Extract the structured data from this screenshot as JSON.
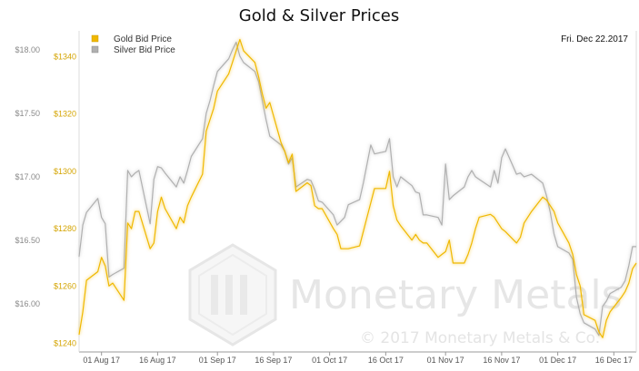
{
  "chart_data": {
    "type": "line",
    "title": "Gold & Silver Prices",
    "date_label": "Fri. Dec 22.2017",
    "legend_position": "top-left",
    "grid": false,
    "x_tick_labels": [
      "01 Aug 17",
      "16 Aug 17",
      "01 Sep 17",
      "16 Sep 17",
      "01 Oct 17",
      "16 Oct 17",
      "01 Nov 17",
      "16 Nov 17",
      "01 Dec 17",
      "16 Dec 17"
    ],
    "x_range": [
      "2017-07-26",
      "2017-12-22"
    ],
    "gold_axis": {
      "ylim": [
        1237,
        1349
      ],
      "ticks": [
        1240,
        1260,
        1280,
        1300,
        1320,
        1340
      ],
      "tick_labels": [
        "$1240",
        "$1260",
        "$1280",
        "$1300",
        "$1320",
        "$1340"
      ]
    },
    "silver_axis": {
      "ylim": [
        15.62,
        18.15
      ],
      "ticks": [
        16.0,
        16.5,
        17.0,
        17.5,
        18.0
      ],
      "tick_labels": [
        "$16.00",
        "$16.50",
        "$17.00",
        "$17.50",
        "$18.00"
      ]
    },
    "series": [
      {
        "name": "Gold Bid Price",
        "color": "#f0b800",
        "axis": "gold",
        "x": [
          "2017-07-26",
          "2017-07-27",
          "2017-07-28",
          "2017-07-31",
          "2017-08-01",
          "2017-08-02",
          "2017-08-03",
          "2017-08-04",
          "2017-08-07",
          "2017-08-08",
          "2017-08-09",
          "2017-08-10",
          "2017-08-11",
          "2017-08-14",
          "2017-08-15",
          "2017-08-16",
          "2017-08-17",
          "2017-08-18",
          "2017-08-21",
          "2017-08-22",
          "2017-08-23",
          "2017-08-24",
          "2017-08-25",
          "2017-08-28",
          "2017-08-29",
          "2017-08-30",
          "2017-08-31",
          "2017-09-01",
          "2017-09-04",
          "2017-09-05",
          "2017-09-06",
          "2017-09-07",
          "2017-09-08",
          "2017-09-11",
          "2017-09-12",
          "2017-09-13",
          "2017-09-14",
          "2017-09-15",
          "2017-09-18",
          "2017-09-19",
          "2017-09-20",
          "2017-09-21",
          "2017-09-22",
          "2017-09-25",
          "2017-09-26",
          "2017-09-27",
          "2017-09-28",
          "2017-09-29",
          "2017-10-02",
          "2017-10-03",
          "2017-10-04",
          "2017-10-05",
          "2017-10-06",
          "2017-10-09",
          "2017-10-10",
          "2017-10-11",
          "2017-10-12",
          "2017-10-13",
          "2017-10-16",
          "2017-10-17",
          "2017-10-18",
          "2017-10-19",
          "2017-10-20",
          "2017-10-23",
          "2017-10-24",
          "2017-10-25",
          "2017-10-26",
          "2017-10-27",
          "2017-10-30",
          "2017-10-31",
          "2017-11-01",
          "2017-11-02",
          "2017-11-03",
          "2017-11-06",
          "2017-11-07",
          "2017-11-08",
          "2017-11-09",
          "2017-11-10",
          "2017-11-13",
          "2017-11-14",
          "2017-11-15",
          "2017-11-16",
          "2017-11-17",
          "2017-11-20",
          "2017-11-21",
          "2017-11-22",
          "2017-11-24",
          "2017-11-27",
          "2017-11-28",
          "2017-11-29",
          "2017-11-30",
          "2017-12-01",
          "2017-12-04",
          "2017-12-05",
          "2017-12-06",
          "2017-12-07",
          "2017-12-08",
          "2017-12-11",
          "2017-12-12",
          "2017-12-13",
          "2017-12-14",
          "2017-12-15",
          "2017-12-18",
          "2017-12-19",
          "2017-12-20",
          "2017-12-21",
          "2017-12-22"
        ],
        "values": [
          1243,
          1251,
          1262,
          1265,
          1270,
          1267,
          1260,
          1261,
          1255,
          1282,
          1280,
          1286,
          1286,
          1273,
          1275,
          1286,
          1291,
          1287,
          1280,
          1284,
          1282,
          1288,
          1291,
          1299,
          1314,
          1318,
          1322,
          1328,
          1334,
          1338,
          1342,
          1346,
          1342,
          1338,
          1333,
          1327,
          1322,
          1324,
          1310,
          1307,
          1303,
          1306,
          1293,
          1296,
          1295,
          1288,
          1287,
          1287,
          1280,
          1278,
          1273,
          1273,
          1273,
          1274,
          1279,
          1284,
          1289,
          1294,
          1294,
          1300,
          1288,
          1283,
          1281,
          1276,
          1278,
          1276,
          1275,
          1275,
          1270,
          1271,
          1272,
          1276,
          1268,
          1268,
          1271,
          1275,
          1280,
          1284,
          1285,
          1284,
          1282,
          1280,
          1279,
          1275,
          1277,
          1282,
          1286,
          1291,
          1290,
          1288,
          1286,
          1282,
          1275,
          1271,
          1264,
          1260,
          1250,
          1248,
          1244,
          1242,
          1248,
          1251,
          1256,
          1258,
          1261,
          1266,
          1268
        ]
      },
      {
        "name": "Silver Bid Price",
        "color": "#b0b0b0",
        "axis": "silver",
        "x": [
          "2017-07-26",
          "2017-07-27",
          "2017-07-28",
          "2017-07-31",
          "2017-08-01",
          "2017-08-02",
          "2017-08-03",
          "2017-08-04",
          "2017-08-07",
          "2017-08-08",
          "2017-08-09",
          "2017-08-10",
          "2017-08-11",
          "2017-08-14",
          "2017-08-15",
          "2017-08-16",
          "2017-08-17",
          "2017-08-18",
          "2017-08-21",
          "2017-08-22",
          "2017-08-23",
          "2017-08-24",
          "2017-08-25",
          "2017-08-28",
          "2017-08-29",
          "2017-08-30",
          "2017-08-31",
          "2017-09-01",
          "2017-09-04",
          "2017-09-05",
          "2017-09-06",
          "2017-09-07",
          "2017-09-08",
          "2017-09-11",
          "2017-09-12",
          "2017-09-13",
          "2017-09-14",
          "2017-09-15",
          "2017-09-18",
          "2017-09-19",
          "2017-09-20",
          "2017-09-21",
          "2017-09-22",
          "2017-09-25",
          "2017-09-26",
          "2017-09-27",
          "2017-09-28",
          "2017-09-29",
          "2017-10-02",
          "2017-10-03",
          "2017-10-04",
          "2017-10-05",
          "2017-10-06",
          "2017-10-09",
          "2017-10-10",
          "2017-10-11",
          "2017-10-12",
          "2017-10-13",
          "2017-10-16",
          "2017-10-17",
          "2017-10-18",
          "2017-10-19",
          "2017-10-20",
          "2017-10-23",
          "2017-10-24",
          "2017-10-25",
          "2017-10-26",
          "2017-10-27",
          "2017-10-30",
          "2017-10-31",
          "2017-11-01",
          "2017-11-02",
          "2017-11-03",
          "2017-11-06",
          "2017-11-07",
          "2017-11-08",
          "2017-11-09",
          "2017-11-10",
          "2017-11-13",
          "2017-11-14",
          "2017-11-15",
          "2017-11-16",
          "2017-11-17",
          "2017-11-20",
          "2017-11-21",
          "2017-11-22",
          "2017-11-24",
          "2017-11-27",
          "2017-11-28",
          "2017-11-29",
          "2017-11-30",
          "2017-12-01",
          "2017-12-04",
          "2017-12-05",
          "2017-12-06",
          "2017-12-07",
          "2017-12-08",
          "2017-12-11",
          "2017-12-12",
          "2017-12-13",
          "2017-12-14",
          "2017-12-15",
          "2017-12-18",
          "2017-12-19",
          "2017-12-20",
          "2017-12-21",
          "2017-12-22"
        ],
        "values": [
          16.37,
          16.62,
          16.72,
          16.83,
          16.68,
          16.63,
          16.21,
          16.23,
          16.28,
          17.05,
          17.0,
          17.03,
          17.05,
          16.63,
          16.98,
          17.08,
          17.07,
          17.03,
          16.92,
          17.0,
          16.95,
          17.05,
          17.16,
          17.3,
          17.5,
          17.6,
          17.72,
          17.83,
          17.93,
          18.0,
          18.06,
          17.95,
          17.9,
          17.83,
          17.75,
          17.6,
          17.45,
          17.32,
          17.25,
          17.2,
          17.1,
          17.15,
          16.92,
          16.98,
          16.97,
          16.9,
          16.81,
          16.8,
          16.7,
          16.62,
          16.65,
          16.68,
          16.78,
          16.82,
          16.95,
          17.1,
          17.25,
          17.18,
          17.2,
          17.3,
          17.0,
          16.92,
          17.0,
          16.93,
          16.88,
          16.87,
          16.7,
          16.7,
          16.68,
          16.62,
          17.1,
          16.82,
          16.85,
          16.92,
          17.0,
          17.05,
          17.0,
          16.98,
          16.92,
          17.05,
          16.95,
          17.15,
          17.22,
          17.02,
          17.03,
          17.0,
          17.02,
          16.95,
          16.85,
          16.72,
          16.55,
          16.45,
          16.4,
          16.35,
          16.05,
          15.92,
          15.85,
          15.8,
          15.75,
          15.98,
          16.02,
          16.08,
          16.13,
          16.18,
          16.3,
          16.45,
          16.45
        ]
      }
    ]
  },
  "legend": {
    "gold_label": "Gold Bid Price",
    "silver_label": "Silver Bid Price"
  },
  "watermark": {
    "brand_text": "Monetary Metals",
    "copyright": "© 2017 Monetary Metals & Co."
  }
}
